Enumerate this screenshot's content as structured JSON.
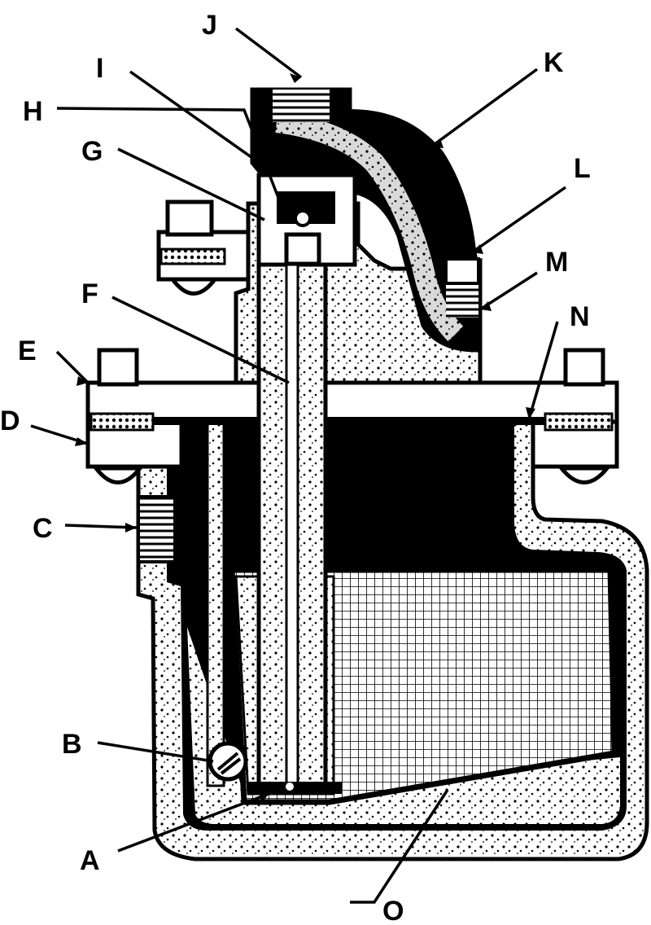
{
  "labels": {
    "A": "A",
    "B": "B",
    "C": "C",
    "D": "D",
    "E": "E",
    "F": "F",
    "G": "G",
    "H": "H",
    "I": "I",
    "J": "J",
    "K": "K",
    "L": "L",
    "M": "M",
    "N": "N",
    "O": "O"
  },
  "colors": {
    "ink": "#000000",
    "paper": "#ffffff",
    "stipple": "#d8d8d8"
  }
}
